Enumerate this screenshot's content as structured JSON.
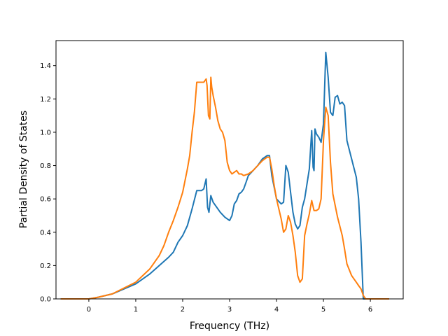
{
  "chart_data": {
    "type": "line",
    "xlabel": "Frequency (THz)",
    "ylabel": "Partial Density of States",
    "xlim": [
      -0.7,
      6.7
    ],
    "ylim": [
      0.0,
      1.55
    ],
    "xticks": [
      "0",
      "1",
      "2",
      "3",
      "4",
      "5",
      "6"
    ],
    "yticks": [
      "0.0",
      "0.2",
      "0.4",
      "0.6",
      "0.8",
      "1.0",
      "1.2",
      "1.4"
    ],
    "grid": false,
    "legend": "none",
    "series": [
      {
        "color": "#1f77b4",
        "x": [
          -0.6,
          0.0,
          0.2,
          0.5,
          1.0,
          1.3,
          1.5,
          1.7,
          1.8,
          1.9,
          2.0,
          2.1,
          2.2,
          2.3,
          2.4,
          2.45,
          2.5,
          2.53,
          2.56,
          2.6,
          2.65,
          2.7,
          2.8,
          2.9,
          3.0,
          3.05,
          3.1,
          3.15,
          3.2,
          3.25,
          3.3,
          3.35,
          3.4,
          3.5,
          3.6,
          3.7,
          3.8,
          3.85,
          3.9,
          3.95,
          4.0,
          4.1,
          4.15,
          4.2,
          4.25,
          4.3,
          4.35,
          4.4,
          4.45,
          4.5,
          4.55,
          4.6,
          4.7,
          4.75,
          4.78,
          4.8,
          4.82,
          4.85,
          4.9,
          4.95,
          5.0,
          5.05,
          5.1,
          5.15,
          5.2,
          5.25,
          5.3,
          5.35,
          5.4,
          5.45,
          5.5,
          5.6,
          5.7,
          5.75,
          5.8,
          5.85,
          5.9,
          6.4
        ],
        "y": [
          0.0,
          0.0,
          0.01,
          0.03,
          0.09,
          0.15,
          0.2,
          0.25,
          0.28,
          0.34,
          0.38,
          0.44,
          0.54,
          0.65,
          0.65,
          0.66,
          0.72,
          0.55,
          0.52,
          0.62,
          0.58,
          0.56,
          0.52,
          0.49,
          0.47,
          0.5,
          0.57,
          0.59,
          0.63,
          0.64,
          0.66,
          0.7,
          0.74,
          0.77,
          0.8,
          0.84,
          0.86,
          0.86,
          0.74,
          0.67,
          0.6,
          0.57,
          0.58,
          0.8,
          0.76,
          0.64,
          0.52,
          0.45,
          0.42,
          0.44,
          0.55,
          0.6,
          0.78,
          1.01,
          0.79,
          0.77,
          1.02,
          0.99,
          0.97,
          0.94,
          1.05,
          1.48,
          1.33,
          1.12,
          1.1,
          1.21,
          1.22,
          1.17,
          1.18,
          1.16,
          0.95,
          0.84,
          0.73,
          0.6,
          0.34,
          0.0,
          0.0,
          0.0
        ]
      },
      {
        "color": "#ff7f0e",
        "x": [
          -0.6,
          0.0,
          0.2,
          0.5,
          1.0,
          1.3,
          1.5,
          1.6,
          1.7,
          1.8,
          1.9,
          2.0,
          2.1,
          2.15,
          2.2,
          2.25,
          2.3,
          2.4,
          2.45,
          2.5,
          2.52,
          2.55,
          2.58,
          2.6,
          2.62,
          2.65,
          2.7,
          2.75,
          2.8,
          2.85,
          2.9,
          2.95,
          3.0,
          3.05,
          3.1,
          3.15,
          3.2,
          3.25,
          3.3,
          3.4,
          3.5,
          3.6,
          3.7,
          3.8,
          3.85,
          3.9,
          3.95,
          4.0,
          4.1,
          4.15,
          4.2,
          4.25,
          4.3,
          4.35,
          4.4,
          4.45,
          4.5,
          4.55,
          4.6,
          4.65,
          4.7,
          4.75,
          4.8,
          4.85,
          4.9,
          4.95,
          5.0,
          5.05,
          5.1,
          5.15,
          5.2,
          5.3,
          5.4,
          5.45,
          5.5,
          5.6,
          5.7,
          5.75,
          5.8,
          5.85,
          5.9,
          6.4
        ],
        "y": [
          0.0,
          0.0,
          0.01,
          0.03,
          0.1,
          0.18,
          0.26,
          0.32,
          0.4,
          0.47,
          0.55,
          0.64,
          0.78,
          0.86,
          1.0,
          1.12,
          1.3,
          1.3,
          1.3,
          1.32,
          1.28,
          1.1,
          1.08,
          1.33,
          1.27,
          1.22,
          1.15,
          1.07,
          1.02,
          1.0,
          0.95,
          0.82,
          0.77,
          0.75,
          0.76,
          0.77,
          0.75,
          0.75,
          0.74,
          0.75,
          0.77,
          0.8,
          0.83,
          0.85,
          0.85,
          0.78,
          0.68,
          0.6,
          0.48,
          0.4,
          0.42,
          0.5,
          0.46,
          0.38,
          0.28,
          0.14,
          0.1,
          0.12,
          0.38,
          0.45,
          0.51,
          0.59,
          0.53,
          0.53,
          0.54,
          0.6,
          0.95,
          1.15,
          1.1,
          0.82,
          0.63,
          0.49,
          0.38,
          0.3,
          0.21,
          0.14,
          0.1,
          0.08,
          0.06,
          0.02,
          0.0,
          0.0
        ]
      }
    ]
  }
}
